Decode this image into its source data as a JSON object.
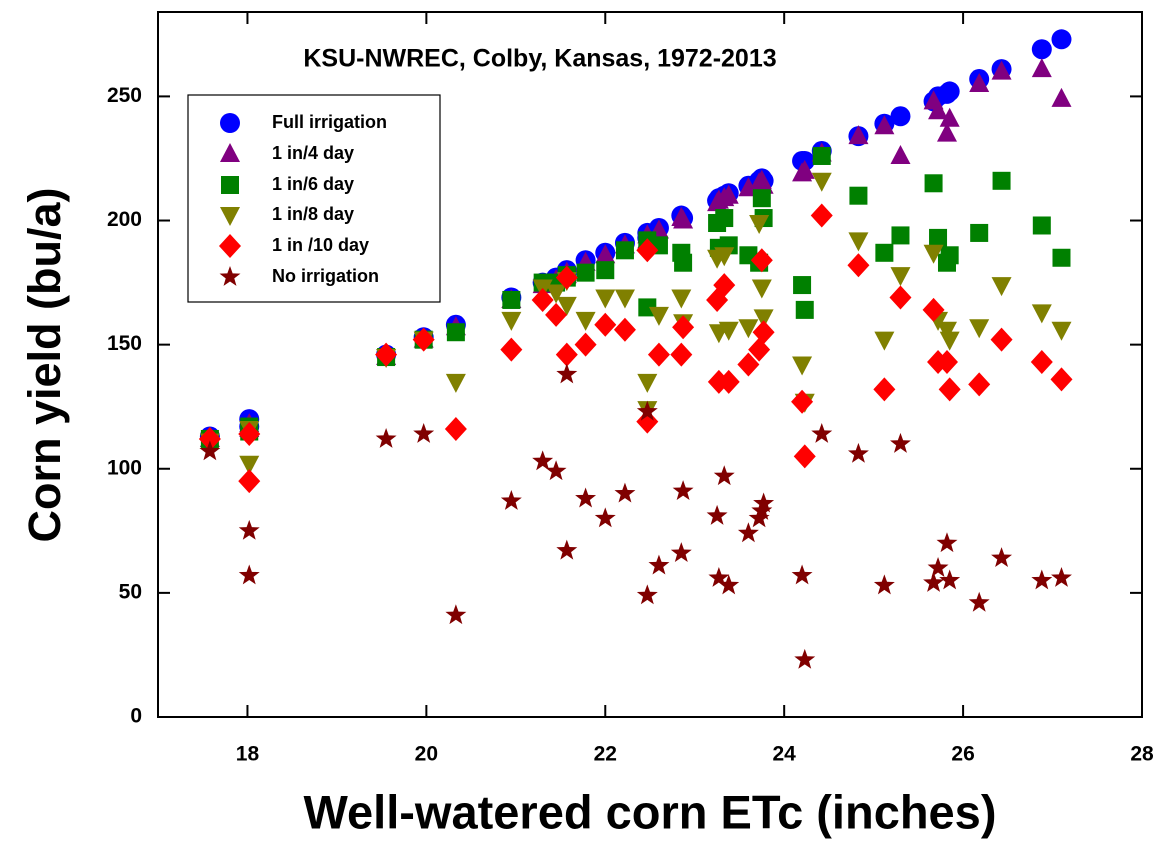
{
  "chart_data": {
    "type": "scatter",
    "title": "KSU-NWREC, Colby, Kansas, 1972-2013",
    "x_label": "Well-watered corn ETc (inches)",
    "y_label": "Corn yield (bu/a)",
    "xlim": [
      17,
      28
    ],
    "ylim": [
      0,
      284
    ],
    "xticks": [
      18,
      20,
      22,
      24,
      26,
      28
    ],
    "yticks": [
      0,
      50,
      100,
      150,
      200,
      250
    ],
    "legend": "upper left",
    "x": [
      17.58,
      18.02,
      18.02,
      19.55,
      19.97,
      20.33,
      20.95,
      21.3,
      21.45,
      21.57,
      21.57,
      21.78,
      22.0,
      22.22,
      22.47,
      22.47,
      22.6,
      22.85,
      22.87,
      23.25,
      23.27,
      23.33,
      23.38,
      23.6,
      23.72,
      23.75,
      23.77,
      24.2,
      24.23,
      24.42,
      24.83,
      25.12,
      25.3,
      25.67,
      25.72,
      25.82,
      25.85,
      26.18,
      26.43,
      26.88,
      27.1
    ],
    "series": [
      {
        "name": "Full irrigation",
        "color": "#0000ff",
        "marker": "circle",
        "values": [
          113,
          120,
          117,
          146,
          153,
          158,
          169,
          175,
          177,
          180,
          179,
          184,
          187,
          191,
          195,
          193,
          197,
          202,
          201,
          208,
          209,
          210,
          211,
          214,
          216,
          217,
          216,
          224,
          224,
          228,
          234,
          239,
          242,
          248,
          250,
          251,
          252,
          257,
          261,
          269,
          273
        ]
      },
      {
        "name": "1 in/4 day",
        "color": "#800080",
        "marker": "triangle-up",
        "values": [
          112,
          118,
          116,
          145,
          152,
          157,
          168,
          174,
          176,
          179,
          178,
          183,
          186,
          190,
          194,
          192,
          196,
          201,
          200,
          207,
          208,
          209,
          210,
          213,
          215,
          216,
          214,
          219,
          220,
          227,
          234,
          238,
          226,
          248,
          244,
          235,
          241,
          255,
          260,
          261,
          249
        ]
      },
      {
        "name": "1 in/6 day",
        "color": "#008000",
        "marker": "square",
        "values": [
          112,
          117,
          115,
          145,
          152,
          155,
          168,
          175,
          175,
          178,
          177,
          179,
          180,
          188,
          165,
          192,
          190,
          187,
          183,
          199,
          189,
          201,
          190,
          186,
          183,
          209,
          201,
          174,
          164,
          226,
          210,
          187,
          194,
          215,
          193,
          183,
          186,
          195,
          216,
          198,
          185
        ]
      },
      {
        "name": "1 in/8 day",
        "color": "#808000",
        "marker": "triangle-down",
        "values": [
          111,
          102,
          116,
          145,
          152,
          135,
          160,
          173,
          171,
          166,
          176,
          160,
          169,
          169,
          135,
          124,
          162,
          169,
          159,
          185,
          155,
          186,
          156,
          157,
          199,
          173,
          161,
          142,
          127,
          216,
          192,
          152,
          178,
          187,
          160,
          156,
          152,
          157,
          174,
          163,
          156
        ]
      },
      {
        "name": "1 in /10 day",
        "color": "#ff0000",
        "marker": "diamond",
        "values": [
          112,
          95,
          114,
          146,
          152,
          116,
          148,
          168,
          162,
          177,
          146,
          150,
          158,
          156,
          188,
          119,
          146,
          146,
          157,
          168,
          135,
          174,
          135,
          142,
          148,
          184,
          155,
          127,
          105,
          202,
          182,
          132,
          169,
          164,
          143,
          143,
          132,
          134,
          152,
          143,
          136
        ]
      },
      {
        "name": "No irrigation",
        "color": "#800000",
        "marker": "star",
        "values": [
          107,
          57,
          75,
          112,
          114,
          41,
          87,
          103,
          99,
          67,
          138,
          88,
          80,
          90,
          123,
          49,
          61,
          66,
          91,
          81,
          56,
          97,
          53,
          74,
          80,
          83,
          86,
          57,
          23,
          114,
          106,
          53,
          110,
          54,
          60,
          70,
          55,
          46,
          64,
          55,
          56
        ]
      }
    ]
  }
}
